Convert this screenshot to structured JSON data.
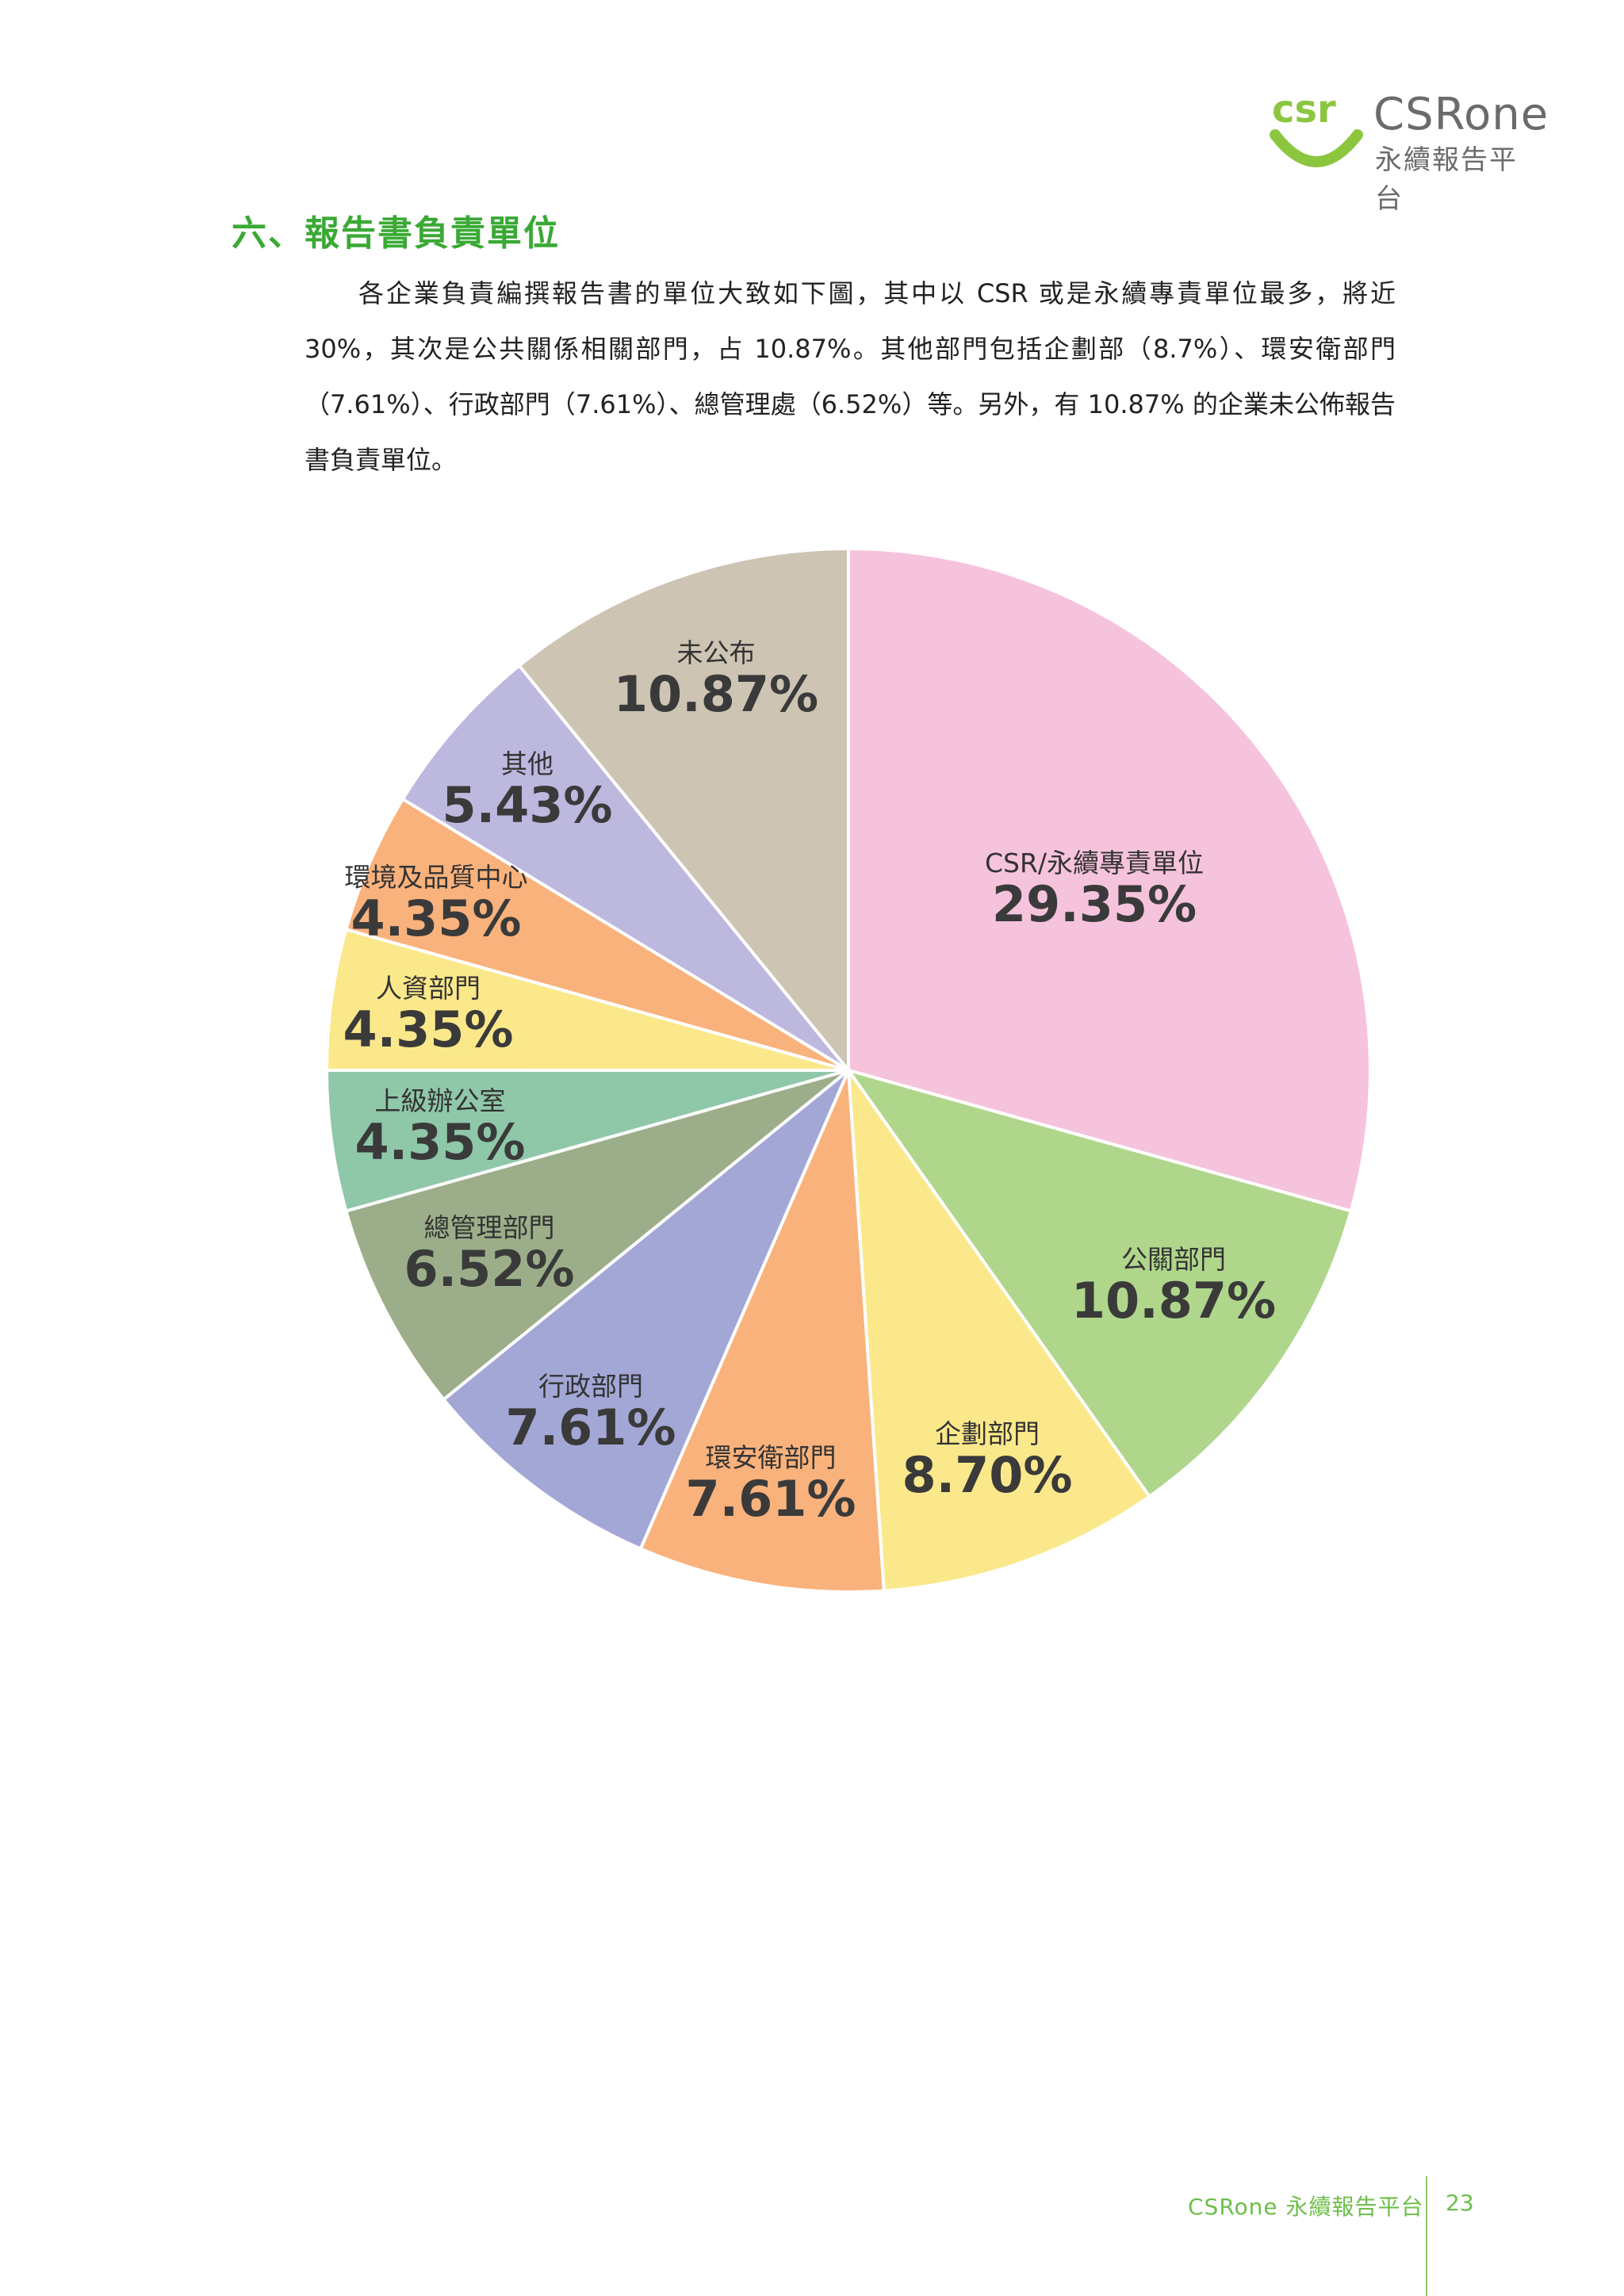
{
  "logo": {
    "name": "CSRone",
    "subtitle": "永續報告平台",
    "brand_color": "#8cc63f"
  },
  "section": {
    "heading": "六、報告書負責單位",
    "paragraph": "各企業負責編撰報告書的單位大致如下圖，其中以 CSR 或是永續專責單位最多，將近 30%，其次是公共關係相關部門，占 10.87%。其他部門包括企劃部（8.7%）、環安衛部門（7.61%）、行政部門（7.61%）、總管理處（6.52%）等。另外，有 10.87% 的企業未公佈報告書負責單位。"
  },
  "chart_data": {
    "type": "pie",
    "start": "12 o'clock, clockwise",
    "slices": [
      {
        "label": "CSR/永續專責單位",
        "value": 29.35,
        "display": "29.35%",
        "color": "#f6c3dc"
      },
      {
        "label": "公關部門",
        "value": 10.87,
        "display": "10.87%",
        "color": "#b0d68c"
      },
      {
        "label": "企劃部門",
        "value": 8.7,
        "display": "8.70%",
        "color": "#fbe88a"
      },
      {
        "label": "環安衛部門",
        "value": 7.61,
        "display": "7.61%",
        "color": "#f9b27c"
      },
      {
        "label": "行政部門",
        "value": 7.61,
        "display": "7.61%",
        "color": "#a3a7d6"
      },
      {
        "label": "總管理部門",
        "value": 6.52,
        "display": "6.52%",
        "color": "#9cae89"
      },
      {
        "label": "上級辦公室",
        "value": 4.35,
        "display": "4.35%",
        "color": "#8fc7a9"
      },
      {
        "label": "人資部門",
        "value": 4.35,
        "display": "4.35%",
        "color": "#fbe88a"
      },
      {
        "label": "環境及品質中心",
        "value": 4.35,
        "display": "4.35%",
        "color": "#f9b27c"
      },
      {
        "label": "其他",
        "value": 5.43,
        "display": "5.43%",
        "color": "#bcb8de"
      },
      {
        "label": "未公布",
        "value": 10.87,
        "display": "10.87%",
        "color": "#cdc4b3"
      }
    ]
  },
  "footer": {
    "text": "CSRone 永續報告平台",
    "page": "23"
  }
}
